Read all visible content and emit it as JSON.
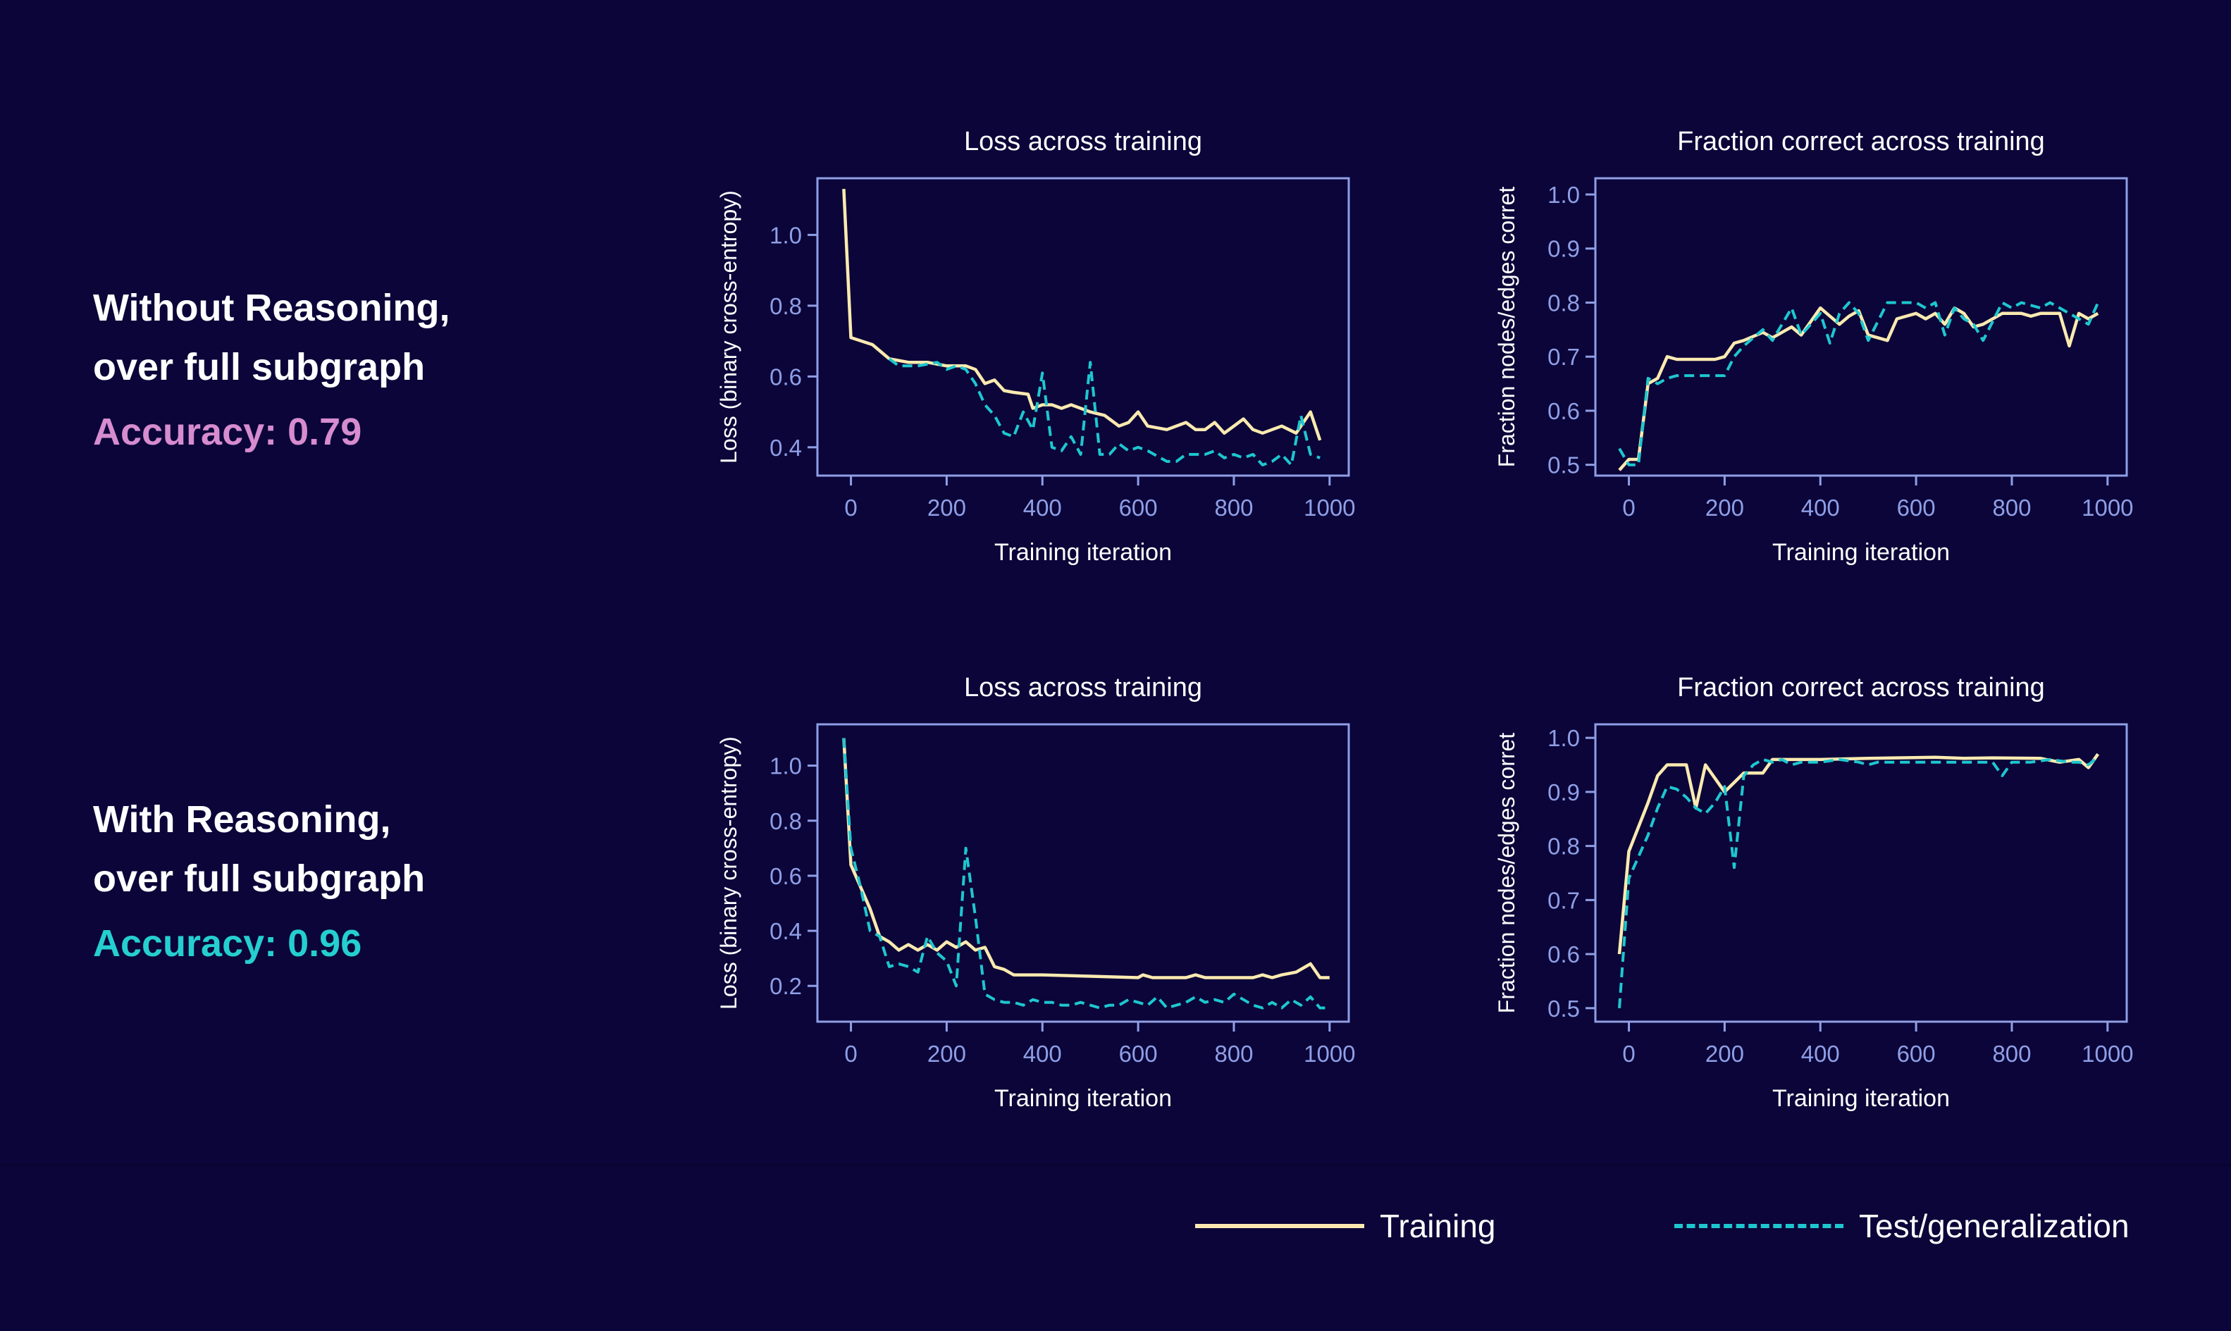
{
  "rows": [
    {
      "line1": "Without Reasoning,",
      "line2": "over full subgraph",
      "accuracy": "Accuracy: 0.79"
    },
    {
      "line1": "With Reasoning,",
      "line2": "over full subgraph",
      "accuracy": "Accuracy: 0.96"
    }
  ],
  "legend": {
    "training": "Training",
    "test": "Test/generalization"
  },
  "colors": {
    "background": "#0b0539",
    "training": "#fbeab0",
    "test": "#1ec7cf",
    "axes": "#8f9fe6",
    "accent_row1": "#d68ccf",
    "accent_row2": "#25cfcf"
  },
  "chart_data": [
    {
      "type": "line",
      "title": "Loss across training",
      "xlabel": "Training iteration",
      "ylabel": "Loss (binary cross-entropy)",
      "xlim": [
        -70,
        1040
      ],
      "ylim": [
        0.32,
        1.16
      ],
      "xticks": [
        0,
        200,
        400,
        600,
        800,
        1000
      ],
      "yticks": [
        0.4,
        0.6,
        0.8,
        1.0
      ],
      "ytick_labels": [
        "0.4",
        "0.6",
        "0.8",
        "1.0"
      ],
      "series": [
        {
          "name": "Training",
          "style": "solid",
          "x": [
            -15,
            0,
            45,
            80,
            120,
            160,
            200,
            240,
            260,
            280,
            300,
            320,
            340,
            370,
            380,
            400,
            420,
            440,
            460,
            480,
            500,
            530,
            560,
            580,
            600,
            620,
            660,
            700,
            720,
            740,
            760,
            780,
            800,
            820,
            840,
            860,
            880,
            900,
            930,
            960,
            980
          ],
          "y": [
            1.13,
            0.71,
            0.69,
            0.65,
            0.64,
            0.64,
            0.63,
            0.63,
            0.62,
            0.58,
            0.59,
            0.56,
            0.555,
            0.55,
            0.51,
            0.52,
            0.52,
            0.51,
            0.52,
            0.51,
            0.5,
            0.49,
            0.46,
            0.47,
            0.5,
            0.46,
            0.45,
            0.47,
            0.45,
            0.45,
            0.47,
            0.44,
            0.46,
            0.48,
            0.45,
            0.44,
            0.45,
            0.46,
            0.44,
            0.5,
            0.42
          ]
        },
        {
          "name": "Test/generalization",
          "style": "dashed",
          "x": [
            80,
            100,
            140,
            180,
            200,
            220,
            240,
            260,
            280,
            300,
            320,
            340,
            360,
            380,
            400,
            420,
            440,
            460,
            480,
            500,
            520,
            540,
            560,
            580,
            600,
            620,
            660,
            680,
            700,
            720,
            740,
            760,
            780,
            800,
            820,
            840,
            860,
            880,
            900,
            920,
            940,
            960,
            980
          ],
          "y": [
            0.65,
            0.63,
            0.63,
            0.64,
            0.62,
            0.63,
            0.62,
            0.58,
            0.52,
            0.49,
            0.44,
            0.43,
            0.5,
            0.45,
            0.61,
            0.4,
            0.39,
            0.43,
            0.38,
            0.64,
            0.38,
            0.38,
            0.41,
            0.39,
            0.4,
            0.39,
            0.36,
            0.36,
            0.38,
            0.38,
            0.38,
            0.39,
            0.37,
            0.38,
            0.37,
            0.38,
            0.35,
            0.36,
            0.38,
            0.35,
            0.49,
            0.38,
            0.37
          ]
        }
      ]
    },
    {
      "type": "line",
      "title": "Fraction correct across training",
      "xlabel": "Training iteration",
      "ylabel": "Fraction nodes/edges corret",
      "xlim": [
        -70,
        1040
      ],
      "ylim": [
        0.48,
        1.03
      ],
      "xticks": [
        0,
        200,
        400,
        600,
        800,
        1000
      ],
      "yticks": [
        0.5,
        0.6,
        0.7,
        0.8,
        0.9,
        1.0
      ],
      "ytick_labels": [
        "0.5",
        "0.6",
        "0.7",
        "0.8",
        "0.9",
        "1.0"
      ],
      "series": [
        {
          "name": "Training",
          "style": "solid",
          "x": [
            -20,
            0,
            20,
            40,
            60,
            80,
            100,
            140,
            180,
            200,
            220,
            240,
            280,
            300,
            340,
            360,
            400,
            420,
            440,
            460,
            480,
            500,
            540,
            560,
            600,
            620,
            640,
            660,
            680,
            700,
            720,
            740,
            780,
            800,
            820,
            840,
            860,
            880,
            900,
            920,
            940,
            960,
            980
          ],
          "y": [
            0.49,
            0.51,
            0.51,
            0.65,
            0.66,
            0.7,
            0.695,
            0.695,
            0.695,
            0.7,
            0.725,
            0.73,
            0.745,
            0.735,
            0.755,
            0.74,
            0.79,
            0.775,
            0.76,
            0.775,
            0.785,
            0.74,
            0.73,
            0.77,
            0.78,
            0.77,
            0.78,
            0.76,
            0.79,
            0.78,
            0.755,
            0.76,
            0.78,
            0.78,
            0.78,
            0.775,
            0.78,
            0.78,
            0.78,
            0.72,
            0.78,
            0.77,
            0.78
          ]
        },
        {
          "name": "Test/generalization",
          "style": "dashed",
          "x": [
            -20,
            0,
            20,
            40,
            60,
            80,
            100,
            140,
            180,
            200,
            220,
            240,
            280,
            300,
            340,
            360,
            400,
            420,
            440,
            460,
            480,
            500,
            540,
            560,
            600,
            620,
            640,
            660,
            680,
            700,
            720,
            740,
            780,
            800,
            820,
            840,
            860,
            880,
            900,
            920,
            940,
            960,
            980
          ],
          "y": [
            0.53,
            0.5,
            0.5,
            0.66,
            0.65,
            0.66,
            0.665,
            0.665,
            0.665,
            0.665,
            0.7,
            0.72,
            0.75,
            0.73,
            0.79,
            0.74,
            0.78,
            0.725,
            0.78,
            0.8,
            0.78,
            0.73,
            0.8,
            0.8,
            0.8,
            0.79,
            0.8,
            0.74,
            0.79,
            0.77,
            0.76,
            0.73,
            0.8,
            0.79,
            0.8,
            0.795,
            0.79,
            0.8,
            0.79,
            0.78,
            0.77,
            0.76,
            0.8
          ]
        }
      ]
    },
    {
      "type": "line",
      "title": "Loss across training",
      "xlabel": "Training iteration",
      "ylabel": "Loss (binary cross-entropy)",
      "xlim": [
        -70,
        1040
      ],
      "ylim": [
        0.07,
        1.15
      ],
      "xticks": [
        0,
        200,
        400,
        600,
        800,
        1000
      ],
      "yticks": [
        0.2,
        0.4,
        0.6,
        0.8,
        1.0
      ],
      "ytick_labels": [
        "0.2",
        "0.4",
        "0.6",
        "0.8",
        "1.0"
      ],
      "series": [
        {
          "name": "Training",
          "style": "solid",
          "x": [
            -15,
            0,
            40,
            60,
            80,
            100,
            120,
            140,
            160,
            180,
            200,
            220,
            240,
            260,
            280,
            300,
            320,
            340,
            400,
            500,
            600,
            610,
            630,
            660,
            700,
            720,
            740,
            800,
            820,
            840,
            860,
            880,
            900,
            930,
            960,
            980,
            1000
          ],
          "y": [
            1.1,
            0.64,
            0.48,
            0.38,
            0.36,
            0.33,
            0.35,
            0.33,
            0.35,
            0.33,
            0.36,
            0.34,
            0.36,
            0.33,
            0.34,
            0.27,
            0.26,
            0.24,
            0.24,
            0.235,
            0.23,
            0.24,
            0.23,
            0.23,
            0.23,
            0.24,
            0.23,
            0.23,
            0.23,
            0.23,
            0.24,
            0.23,
            0.24,
            0.25,
            0.28,
            0.23,
            0.23
          ]
        },
        {
          "name": "Test/generalization",
          "style": "dashed",
          "x": [
            -15,
            0,
            20,
            40,
            60,
            80,
            100,
            120,
            140,
            160,
            180,
            200,
            220,
            240,
            260,
            280,
            300,
            320,
            340,
            360,
            380,
            400,
            420,
            440,
            460,
            480,
            500,
            520,
            540,
            560,
            580,
            600,
            620,
            640,
            660,
            680,
            700,
            720,
            740,
            760,
            780,
            800,
            820,
            840,
            860,
            880,
            900,
            920,
            940,
            960,
            980,
            1000
          ],
          "y": [
            1.1,
            0.7,
            0.56,
            0.4,
            0.38,
            0.27,
            0.28,
            0.27,
            0.25,
            0.38,
            0.32,
            0.29,
            0.2,
            0.7,
            0.45,
            0.17,
            0.15,
            0.14,
            0.14,
            0.13,
            0.15,
            0.14,
            0.14,
            0.13,
            0.13,
            0.14,
            0.13,
            0.12,
            0.13,
            0.13,
            0.15,
            0.14,
            0.13,
            0.16,
            0.12,
            0.13,
            0.14,
            0.16,
            0.14,
            0.15,
            0.14,
            0.17,
            0.15,
            0.13,
            0.12,
            0.14,
            0.12,
            0.15,
            0.13,
            0.16,
            0.12,
            0.12
          ]
        }
      ]
    },
    {
      "type": "line",
      "title": "Fraction correct across training",
      "xlabel": "Training iteration",
      "ylabel": "Fraction nodes/edges corret",
      "xlim": [
        -70,
        1040
      ],
      "ylim": [
        0.475,
        1.025
      ],
      "xticks": [
        0,
        200,
        400,
        600,
        800,
        1000
      ],
      "yticks": [
        0.5,
        0.6,
        0.7,
        0.8,
        0.9,
        1.0
      ],
      "ytick_labels": [
        "0.5",
        "0.6",
        "0.7",
        "0.8",
        "0.9",
        "1.0"
      ],
      "series": [
        {
          "name": "Training",
          "style": "solid",
          "x": [
            -20,
            0,
            40,
            60,
            80,
            120,
            140,
            160,
            200,
            240,
            260,
            280,
            300,
            340,
            400,
            500,
            640,
            700,
            760,
            860,
            900,
            940,
            960,
            980
          ],
          "y": [
            0.6,
            0.79,
            0.88,
            0.93,
            0.95,
            0.95,
            0.87,
            0.95,
            0.9,
            0.935,
            0.935,
            0.935,
            0.96,
            0.96,
            0.96,
            0.962,
            0.964,
            0.962,
            0.963,
            0.962,
            0.955,
            0.96,
            0.945,
            0.97
          ]
        },
        {
          "name": "Test/generalization",
          "style": "dashed",
          "x": [
            -20,
            0,
            40,
            60,
            80,
            100,
            120,
            140,
            160,
            180,
            200,
            220,
            240,
            260,
            280,
            300,
            320,
            340,
            360,
            380,
            400,
            440,
            480,
            500,
            520,
            540,
            560,
            600,
            640,
            680,
            720,
            760,
            780,
            800,
            840,
            880,
            920,
            940,
            960,
            980
          ],
          "y": [
            0.5,
            0.74,
            0.82,
            0.87,
            0.91,
            0.905,
            0.89,
            0.87,
            0.86,
            0.88,
            0.91,
            0.76,
            0.93,
            0.95,
            0.96,
            0.955,
            0.96,
            0.95,
            0.955,
            0.955,
            0.955,
            0.96,
            0.955,
            0.95,
            0.955,
            0.955,
            0.955,
            0.955,
            0.955,
            0.955,
            0.955,
            0.955,
            0.93,
            0.955,
            0.955,
            0.96,
            0.955,
            0.955,
            0.95,
            0.965
          ]
        }
      ]
    }
  ]
}
